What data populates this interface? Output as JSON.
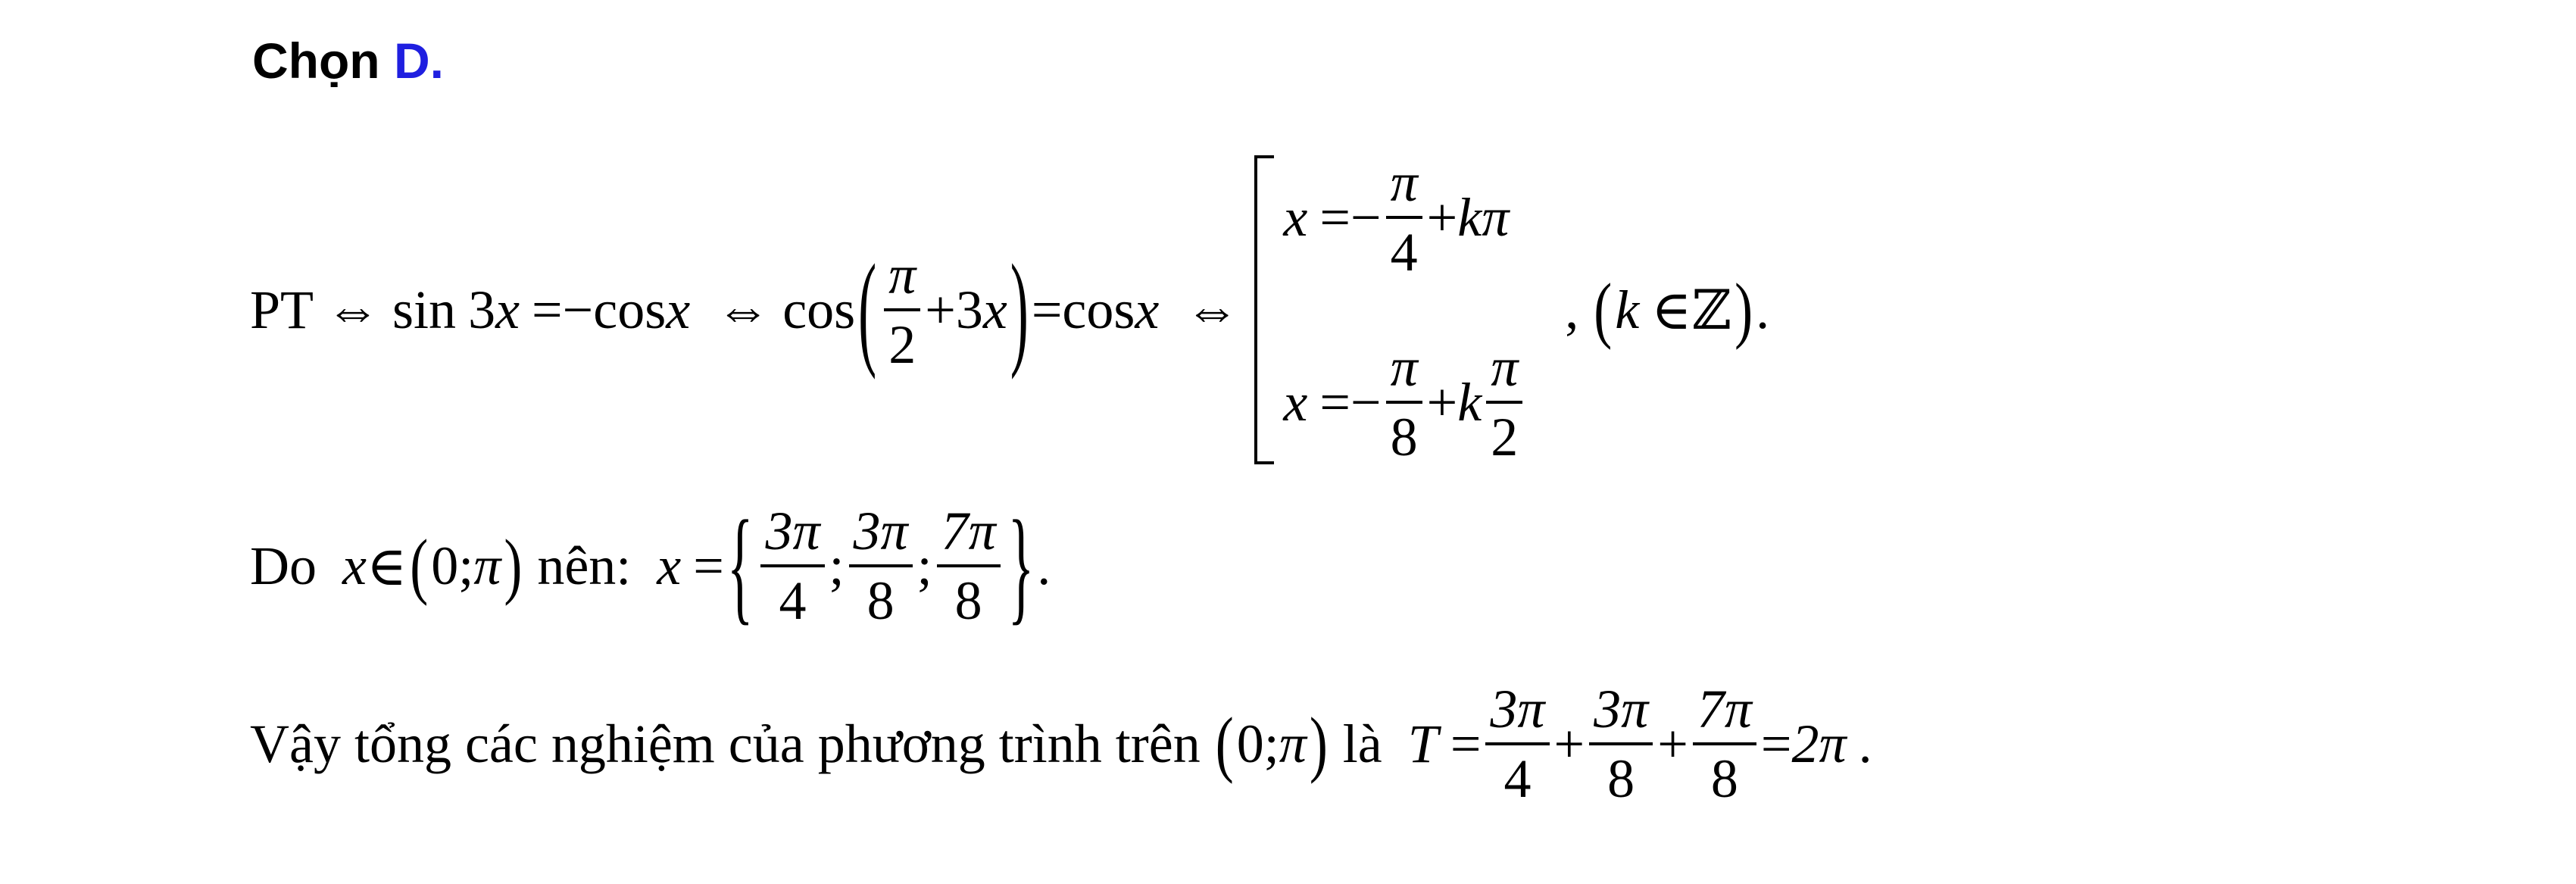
{
  "heading": {
    "prefix": "Chọn",
    "answer": "D."
  },
  "line1": {
    "pt": "PT",
    "iff": "⇔",
    "sin": "sin",
    "three": "3",
    "x": "x",
    "eq": "=",
    "minus": "−",
    "cos": "cos",
    "pi": "π",
    "two": "2",
    "plus": "+",
    "lparen": "(",
    "rparen": ")",
    "case1": {
      "x": "x",
      "eq": "=",
      "minus": "−",
      "num": "π",
      "den": "4",
      "plus": "+",
      "k": "k",
      "pi": "π"
    },
    "case2": {
      "x": "x",
      "eq": "=",
      "minus": "−",
      "num": "π",
      "den": "8",
      "plus": "+",
      "k": "k",
      "num2": "π",
      "den2": "2"
    },
    "comma": ",",
    "k": "k",
    "in": "∈",
    "Z": "ℤ",
    "period": "."
  },
  "line2": {
    "do": "Do",
    "x": "x",
    "in": "∈",
    "zero": "0",
    "semi": ";",
    "pi": "π",
    "nen": "nên:",
    "eq": "=",
    "lbrace": "{",
    "rbrace": "}",
    "f1": {
      "num": "3π",
      "den": "4"
    },
    "f2": {
      "num": "3π",
      "den": "8"
    },
    "f3": {
      "num": "7π",
      "den": "8"
    },
    "period": "."
  },
  "line3": {
    "text": "Vậy tổng các nghiệm của phương trình trên",
    "zero": "0",
    "semi": ";",
    "pi": "π",
    "la": "là",
    "T": "T",
    "eq": "=",
    "plus": "+",
    "f1": {
      "num": "3π",
      "den": "4"
    },
    "f2": {
      "num": "3π",
      "den": "8"
    },
    "f3": {
      "num": "7π",
      "den": "8"
    },
    "result": "2π",
    "period": "."
  }
}
